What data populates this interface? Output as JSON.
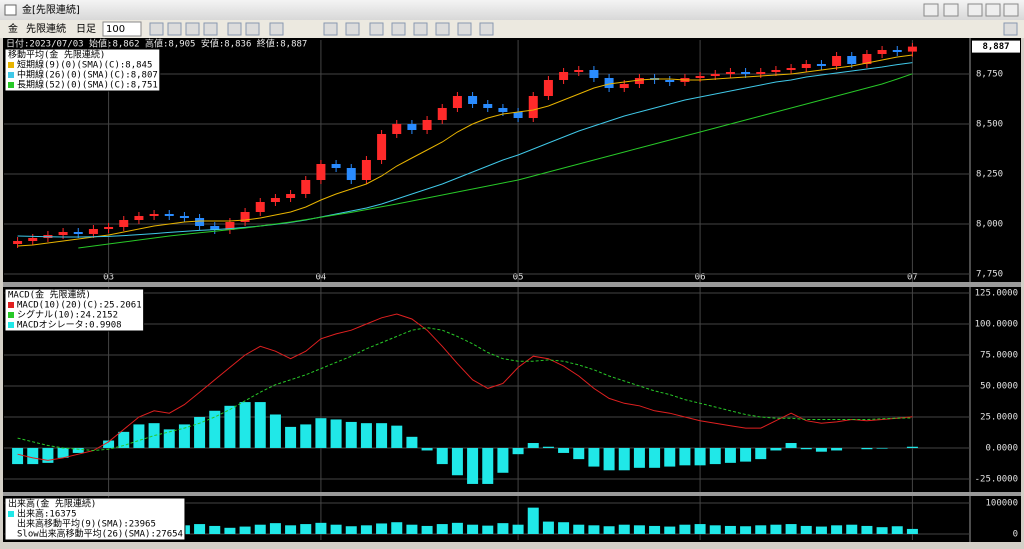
{
  "window": {
    "title": "金[先限連続]"
  },
  "toolbar": {
    "symbol": "金",
    "contract": "先限連続",
    "period": "日足",
    "count": "100"
  },
  "header": {
    "info": "日付:2023/07/03 始値:8,862 高値:8,905 安値:8,836 終値:8,887"
  },
  "chart_data": [
    {
      "type": "candlestick",
      "title": "移動平均(金 先限連続)",
      "categories": [
        null,
        null,
        null,
        null,
        null,
        null,
        "03",
        null,
        null,
        null,
        null,
        null,
        null,
        null,
        null,
        null,
        null,
        null,
        null,
        null,
        "04",
        null,
        null,
        null,
        null,
        null,
        null,
        null,
        null,
        null,
        null,
        null,
        null,
        "05",
        null,
        null,
        null,
        null,
        null,
        null,
        null,
        null,
        null,
        null,
        null,
        "06",
        null,
        null,
        null,
        null,
        null,
        null,
        null,
        null,
        null,
        null,
        null,
        null,
        null,
        "07"
      ],
      "open": [
        7900,
        7915,
        7930,
        7945,
        7960,
        7950,
        7975,
        7985,
        8020,
        8040,
        8050,
        8040,
        8030,
        7990,
        7970,
        8010,
        8060,
        8110,
        8130,
        8150,
        8220,
        8300,
        8280,
        8220,
        8320,
        8450,
        8500,
        8470,
        8520,
        8580,
        8640,
        8600,
        8580,
        8560,
        8530,
        8640,
        8720,
        8760,
        8770,
        8730,
        8680,
        8700,
        8730,
        8720,
        8710,
        8730,
        8740,
        8750,
        8760,
        8750,
        8760,
        8770,
        8780,
        8800,
        8790,
        8840,
        8800,
        8850,
        8870,
        8862
      ],
      "high": [
        7935,
        7950,
        7965,
        7980,
        7980,
        7995,
        8005,
        8040,
        8060,
        8070,
        8070,
        8060,
        8050,
        8010,
        8030,
        8080,
        8130,
        8150,
        8170,
        8240,
        8320,
        8320,
        8300,
        8340,
        8470,
        8520,
        8520,
        8540,
        8600,
        8660,
        8660,
        8620,
        8600,
        8580,
        8660,
        8740,
        8780,
        8790,
        8790,
        8750,
        8720,
        8750,
        8750,
        8740,
        8750,
        8760,
        8770,
        8780,
        8780,
        8780,
        8790,
        8800,
        8820,
        8820,
        8860,
        8860,
        8870,
        8890,
        8890,
        8905
      ],
      "low": [
        7880,
        7895,
        7910,
        7925,
        7930,
        7930,
        7955,
        7965,
        8000,
        8020,
        8020,
        8010,
        7970,
        7950,
        7950,
        7990,
        8040,
        8090,
        8110,
        8130,
        8200,
        8260,
        8200,
        8200,
        8300,
        8430,
        8450,
        8450,
        8500,
        8560,
        8580,
        8560,
        8540,
        8510,
        8510,
        8620,
        8700,
        8740,
        8710,
        8660,
        8660,
        8680,
        8700,
        8690,
        8690,
        8710,
        8720,
        8730,
        8730,
        8730,
        8740,
        8750,
        8760,
        8770,
        8770,
        8780,
        8780,
        8830,
        8840,
        8836
      ],
      "close": [
        7915,
        7930,
        7945,
        7960,
        7950,
        7975,
        7985,
        8020,
        8040,
        8050,
        8040,
        8030,
        7990,
        7970,
        8010,
        8060,
        8110,
        8130,
        8150,
        8220,
        8300,
        8280,
        8220,
        8320,
        8450,
        8500,
        8470,
        8520,
        8580,
        8640,
        8600,
        8580,
        8560,
        8530,
        8640,
        8720,
        8760,
        8770,
        8730,
        8680,
        8700,
        8730,
        8720,
        8710,
        8730,
        8740,
        8750,
        8760,
        8750,
        8760,
        8770,
        8780,
        8800,
        8790,
        8840,
        8800,
        8850,
        8870,
        8860,
        8887
      ],
      "up_color": "#ff2a2a",
      "down_color": "#2a8cff",
      "series": [
        {
          "name": "短期線(9)(0)(SMA)(C):8,845",
          "color": "#e8b400",
          "values": [
            7890,
            7895,
            7905,
            7915,
            7925,
            7935,
            7945,
            7960,
            7975,
            7990,
            8000,
            8010,
            8015,
            8015,
            8015,
            8020,
            8030,
            8045,
            8060,
            8085,
            8120,
            8150,
            8175,
            8200,
            8240,
            8290,
            8330,
            8370,
            8410,
            8460,
            8500,
            8530,
            8550,
            8560,
            8570,
            8590,
            8620,
            8650,
            8680,
            8700,
            8710,
            8720,
            8725,
            8725,
            8720,
            8720,
            8725,
            8730,
            8735,
            8740,
            8745,
            8750,
            8760,
            8770,
            8780,
            8790,
            8805,
            8820,
            8835,
            8845
          ]
        },
        {
          "name": "中期線(26)(0)(SMA)(C):8,807",
          "color": "#40c8e8",
          "values": [
            7940,
            7938,
            7936,
            7935,
            7935,
            7936,
            7938,
            7942,
            7947,
            7952,
            7958,
            7963,
            7968,
            7972,
            7977,
            7983,
            7990,
            7998,
            8008,
            8020,
            8035,
            8050,
            8065,
            8080,
            8100,
            8125,
            8150,
            8175,
            8200,
            8230,
            8260,
            8290,
            8320,
            8345,
            8375,
            8405,
            8435,
            8465,
            8490,
            8515,
            8540,
            8560,
            8580,
            8600,
            8620,
            8635,
            8650,
            8665,
            8680,
            8695,
            8710,
            8720,
            8735,
            8745,
            8755,
            8765,
            8775,
            8785,
            8797,
            8807
          ]
        },
        {
          "name": "長期線(52)(0)(SMA)(C):8,751",
          "color": "#28c828",
          "values": [
            null,
            null,
            null,
            null,
            7880,
            7890,
            7900,
            7910,
            7920,
            7930,
            7940,
            7948,
            7956,
            7964,
            7972,
            7980,
            7990,
            8000,
            8010,
            8022,
            8034,
            8046,
            8058,
            8072,
            8086,
            8100,
            8115,
            8130,
            8145,
            8160,
            8175,
            8190,
            8205,
            8220,
            8240,
            8260,
            8280,
            8300,
            8320,
            8340,
            8360,
            8380,
            8400,
            8420,
            8440,
            8460,
            8480,
            8500,
            8520,
            8540,
            8560,
            8580,
            8600,
            8620,
            8640,
            8660,
            8680,
            8700,
            8725,
            8751
          ]
        }
      ],
      "ylim": [
        7710,
        8920
      ],
      "yticks": [
        {
          "value": 7750,
          "label": "7,750"
        },
        {
          "value": 8000,
          "label": "8,000"
        },
        {
          "value": 8250,
          "label": "8,250"
        },
        {
          "value": 8500,
          "label": "8,500"
        },
        {
          "value": 8750,
          "label": "8,750"
        }
      ],
      "price_tag": "8,887",
      "grid": true
    },
    {
      "type": "macd",
      "title": "MACD(金 先限連続)",
      "series": [
        {
          "name": "MACD(10)(20)(C):25.2061",
          "color": "#e02020",
          "style": "line",
          "values": [
            -5,
            -8,
            -10,
            -8,
            -5,
            -2,
            5,
            15,
            25,
            30,
            28,
            35,
            45,
            55,
            65,
            75,
            82,
            78,
            72,
            78,
            88,
            92,
            95,
            100,
            105,
            108,
            104,
            95,
            82,
            68,
            55,
            48,
            52,
            65,
            74,
            72,
            66,
            58,
            48,
            40,
            36,
            34,
            30,
            28,
            25,
            22,
            20,
            18,
            16,
            16,
            22,
            28,
            22,
            20,
            21,
            23,
            22,
            23,
            24,
            25.2061
          ]
        },
        {
          "name": "シグナル(10):24.2152",
          "color": "#28c828",
          "style": "dashed",
          "values": [
            8,
            5,
            2,
            0,
            -1,
            -2,
            -1,
            2,
            6,
            10,
            13,
            16,
            20,
            25,
            31,
            38,
            45,
            51,
            55,
            59,
            64,
            69,
            74,
            80,
            85,
            90,
            95,
            97,
            95,
            90,
            84,
            77,
            72,
            70,
            70,
            71,
            70,
            67,
            63,
            58,
            54,
            50,
            46,
            43,
            39,
            36,
            33,
            30,
            27,
            25,
            24,
            24,
            23,
            23,
            23,
            23,
            23,
            23.5,
            24,
            24.2152
          ]
        },
        {
          "name": "MACDオシレータ:0.9908",
          "color": "#20e8e8",
          "style": "bar",
          "values": [
            -13,
            -13,
            -12,
            -8,
            -4,
            0,
            6,
            13,
            19,
            20,
            15,
            19,
            25,
            30,
            34,
            37,
            37,
            27,
            17,
            19,
            24,
            23,
            21,
            20,
            20,
            18,
            9,
            -2,
            -13,
            -22,
            -29,
            -29,
            -20,
            -5,
            4,
            1,
            -4,
            -9,
            -15,
            -18,
            -18,
            -16,
            -16,
            -15,
            -14,
            -14,
            -13,
            -12,
            -11,
            -9,
            -2,
            4,
            -1,
            -3,
            -2,
            0,
            -1,
            -0.5,
            0,
            0.9908
          ]
        }
      ],
      "ylim": [
        -35.5,
        129.8
      ],
      "yticks": [
        {
          "value": -25,
          "label": "-25.0000"
        },
        {
          "value": 0,
          "label": "0.0000"
        },
        {
          "value": 25,
          "label": "25.0000"
        },
        {
          "value": 50,
          "label": "50.0000"
        },
        {
          "value": 75,
          "label": "75.0000"
        },
        {
          "value": 100,
          "label": "100.0000"
        },
        {
          "value": 125,
          "label": "125.0000"
        }
      ],
      "grid": true
    },
    {
      "type": "volume",
      "title": "出来高(金 先限連続)",
      "series": [
        {
          "name": "出来高:16375",
          "color": "#20e8e8",
          "values": [
            30000,
            25000,
            20000,
            28000,
            35000,
            30000,
            25000,
            22000,
            38000,
            30000,
            25000,
            28000,
            32000,
            26000,
            20000,
            24000,
            30000,
            35000,
            28000,
            32000,
            36000,
            30000,
            25000,
            28000,
            34000,
            38000,
            30000,
            26000,
            32000,
            36000,
            30000,
            27000,
            35000,
            30000,
            85000,
            40000,
            38000,
            30000,
            28000,
            25000,
            30000,
            28000,
            26000,
            24000,
            30000,
            32000,
            28000,
            26000,
            25000,
            28000,
            30000,
            32000,
            26000,
            24000,
            28000,
            30000,
            26000,
            22000,
            25000,
            16375
          ]
        }
      ],
      "legend": [
        "出来高移動平均(9)(SMA):23965",
        "Slow出来高移動平均(26)(SMA):27654"
      ],
      "ylim": [
        -19355,
        122580
      ],
      "yticks": [
        0,
        100000
      ],
      "grid": true
    }
  ]
}
